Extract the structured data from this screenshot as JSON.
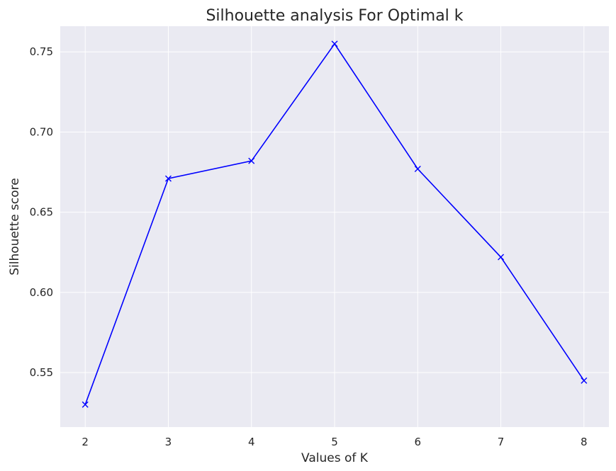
{
  "chart_data": {
    "type": "line",
    "title": "Silhouette analysis For Optimal k",
    "xlabel": "Values of K",
    "ylabel": "Silhouette score",
    "x": [
      2,
      3,
      4,
      5,
      6,
      7,
      8
    ],
    "series": [
      {
        "values": [
          0.53,
          0.671,
          0.682,
          0.755,
          0.677,
          0.622,
          0.545
        ]
      }
    ],
    "xlim": [
      1.7,
      8.3
    ],
    "ylim": [
      0.516,
      0.766
    ],
    "x_ticks": [
      "2",
      "3",
      "4",
      "5",
      "6",
      "7",
      "8"
    ],
    "y_ticks": [
      "0.55",
      "0.60",
      "0.65",
      "0.70",
      "0.75"
    ],
    "grid": true,
    "marker": "x",
    "colors": {
      "line": "#0000ff",
      "plot_bg": "#eaeaf2",
      "grid": "#ffffff",
      "text": "#262626"
    }
  }
}
